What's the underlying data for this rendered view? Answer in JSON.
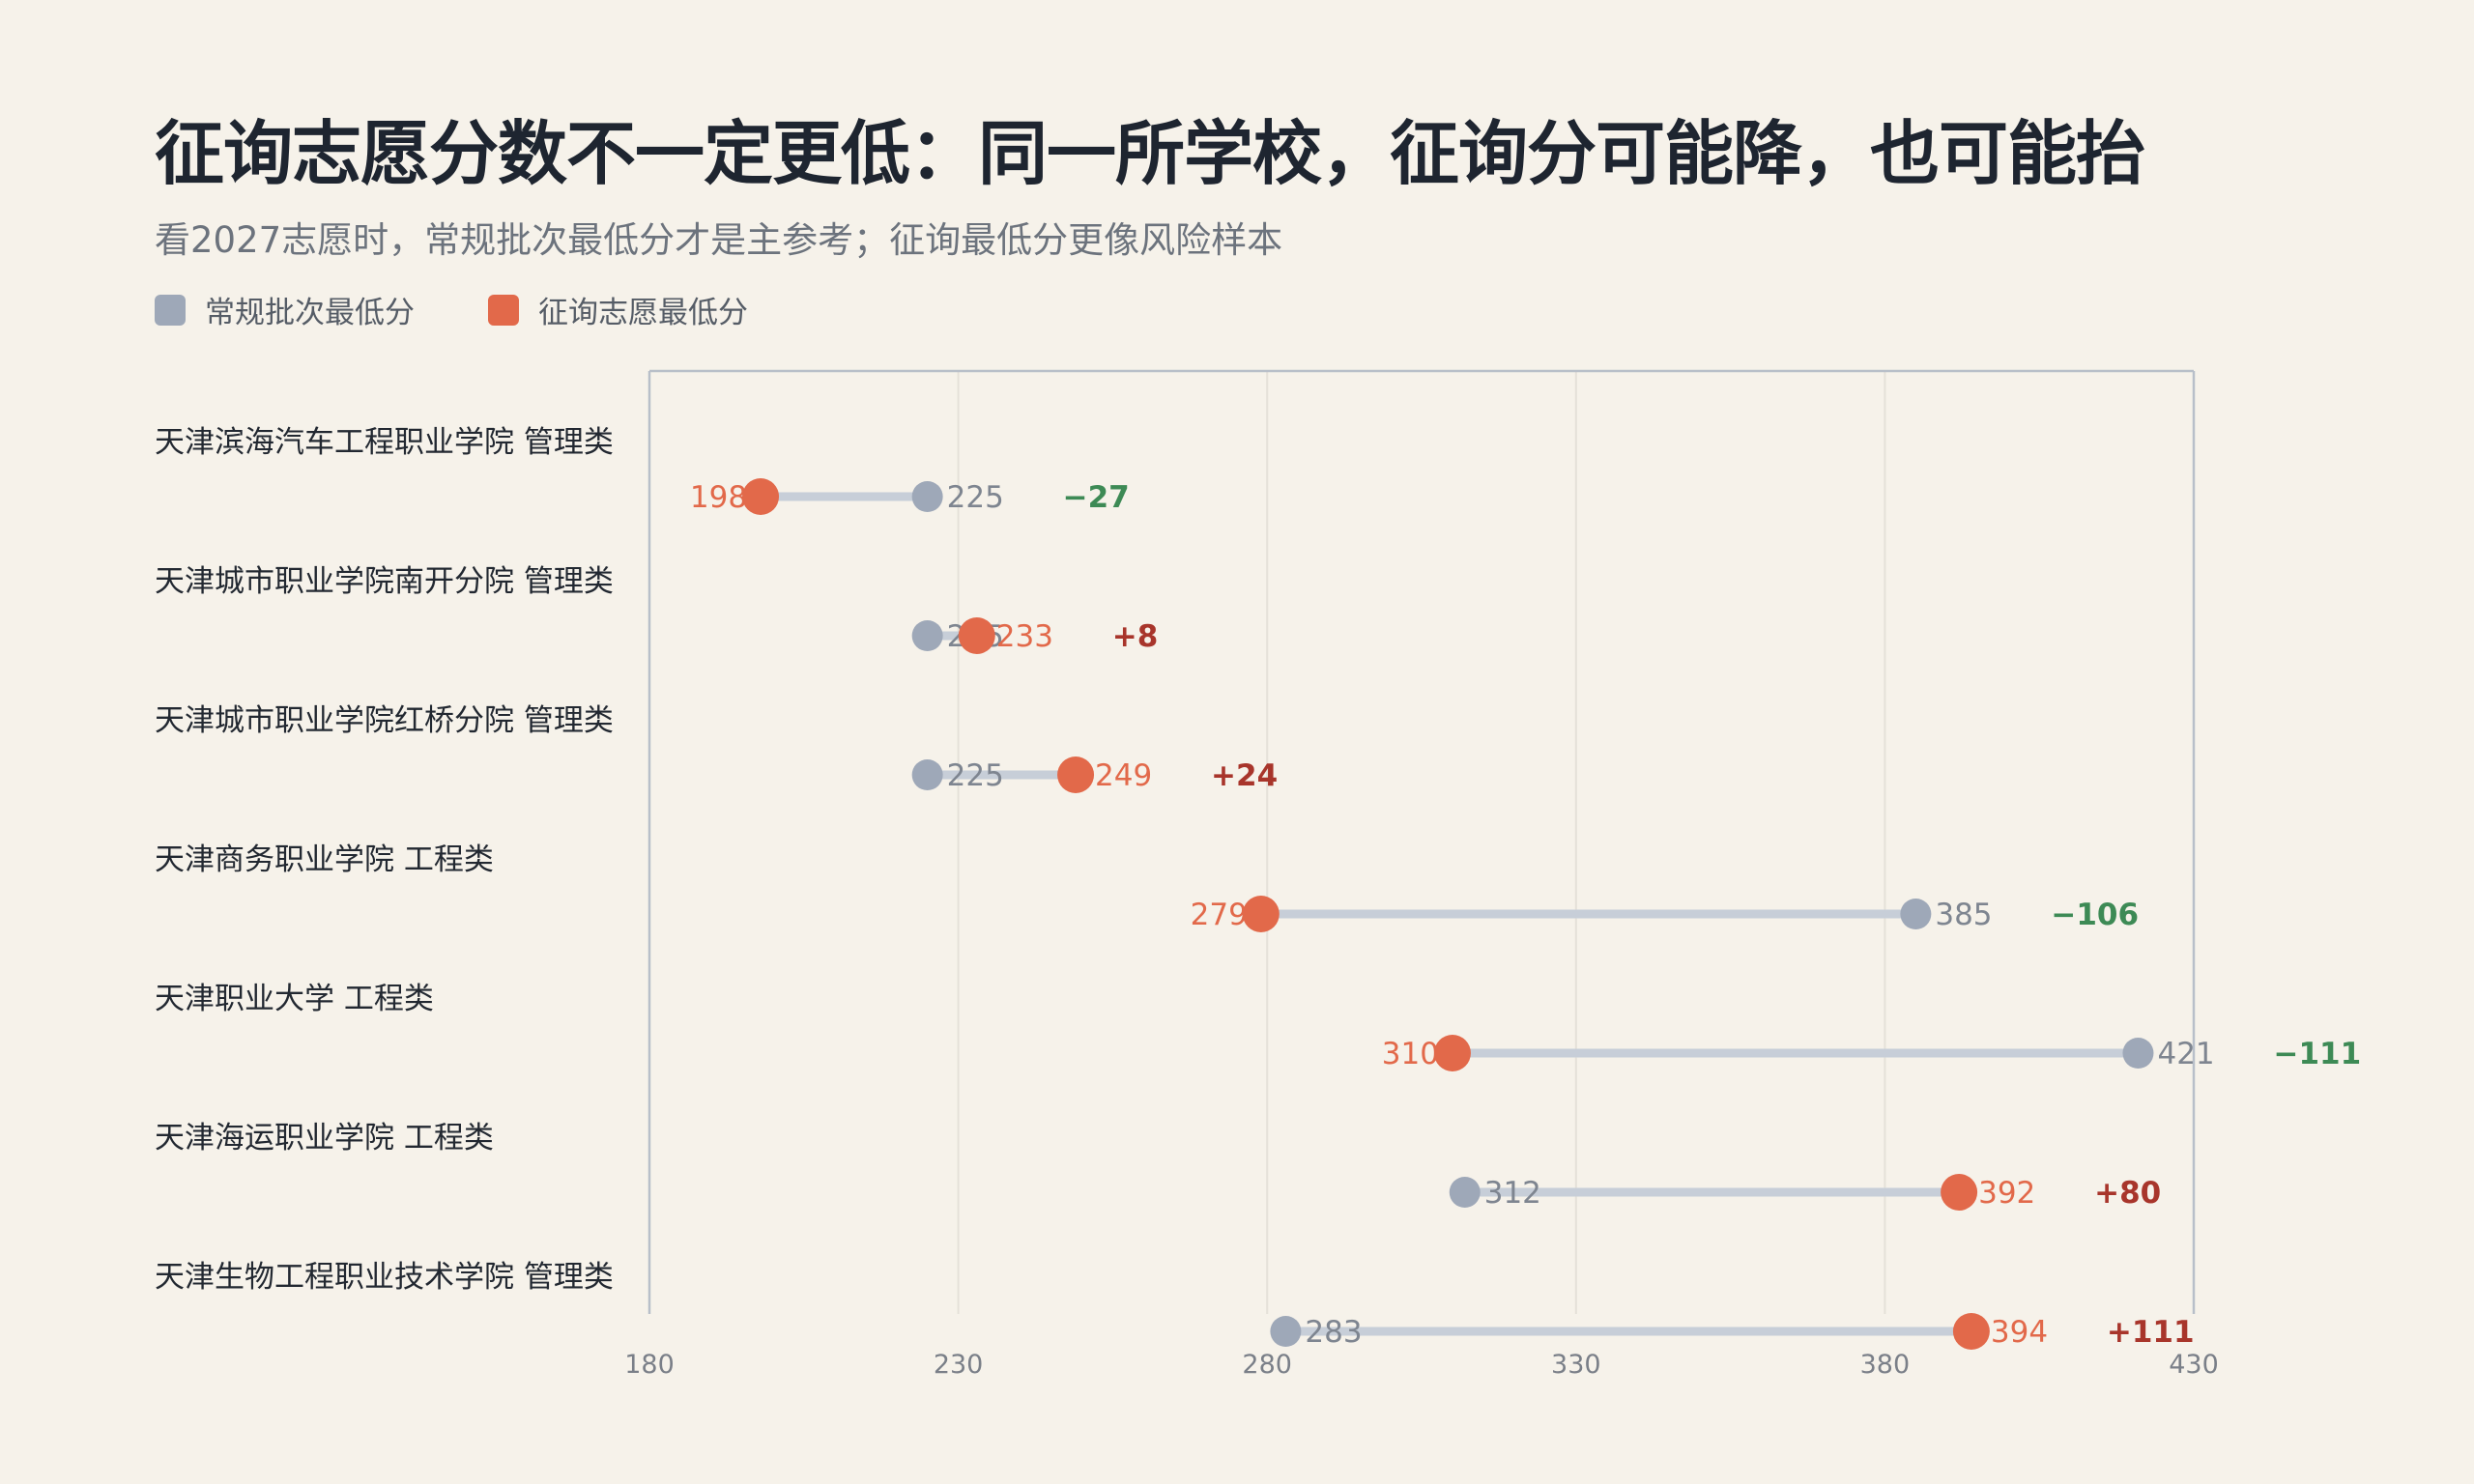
{
  "title": "征询志愿分数不一定更低：同一所学校，征询分可能降，也可能抬",
  "subtitle": "看2027志愿时，常规批次最低分才是主参考；征询最低分更像风险样本",
  "legend": {
    "regular": "常规批次最低分",
    "solicit": "征询志愿最低分"
  },
  "colors": {
    "regular": "#9ea8b8",
    "solicit": "#e2694a",
    "connector": "#c7ced8",
    "positive": "#a8352b",
    "negative": "#3d8a55"
  },
  "chart_data": {
    "type": "dumbbell",
    "title": "征询志愿分数不一定更低：同一所学校，征询分可能降，也可能抬",
    "subtitle": "看2027志愿时，常规批次最低分才是主参考；征询最低分更像风险样本",
    "xlim": [
      180,
      430
    ],
    "x_ticks": [
      180,
      230,
      280,
      330,
      380,
      430
    ],
    "grid": true,
    "legend_position": "top-left",
    "series": [
      {
        "name": "常规批次最低分",
        "key": "regular"
      },
      {
        "name": "征询志愿最低分",
        "key": "solicit"
      }
    ],
    "rows": [
      {
        "label": "天津滨海汽车工程职业学院 管理类",
        "regular": 225,
        "solicit": 198,
        "diff": "−27"
      },
      {
        "label": "天津城市职业学院南开分院 管理类",
        "regular": 225,
        "solicit": 233,
        "diff": "+8"
      },
      {
        "label": "天津城市职业学院红桥分院 管理类",
        "regular": 225,
        "solicit": 249,
        "diff": "+24"
      },
      {
        "label": "天津商务职业学院 工程类",
        "regular": 385,
        "solicit": 279,
        "diff": "−106"
      },
      {
        "label": "天津职业大学 工程类",
        "regular": 421,
        "solicit": 310,
        "diff": "−111"
      },
      {
        "label": "天津海运职业学院 工程类",
        "regular": 312,
        "solicit": 392,
        "diff": "+80"
      },
      {
        "label": "天津生物工程职业技术学院 管理类",
        "regular": 283,
        "solicit": 394,
        "diff": "+111"
      }
    ]
  }
}
